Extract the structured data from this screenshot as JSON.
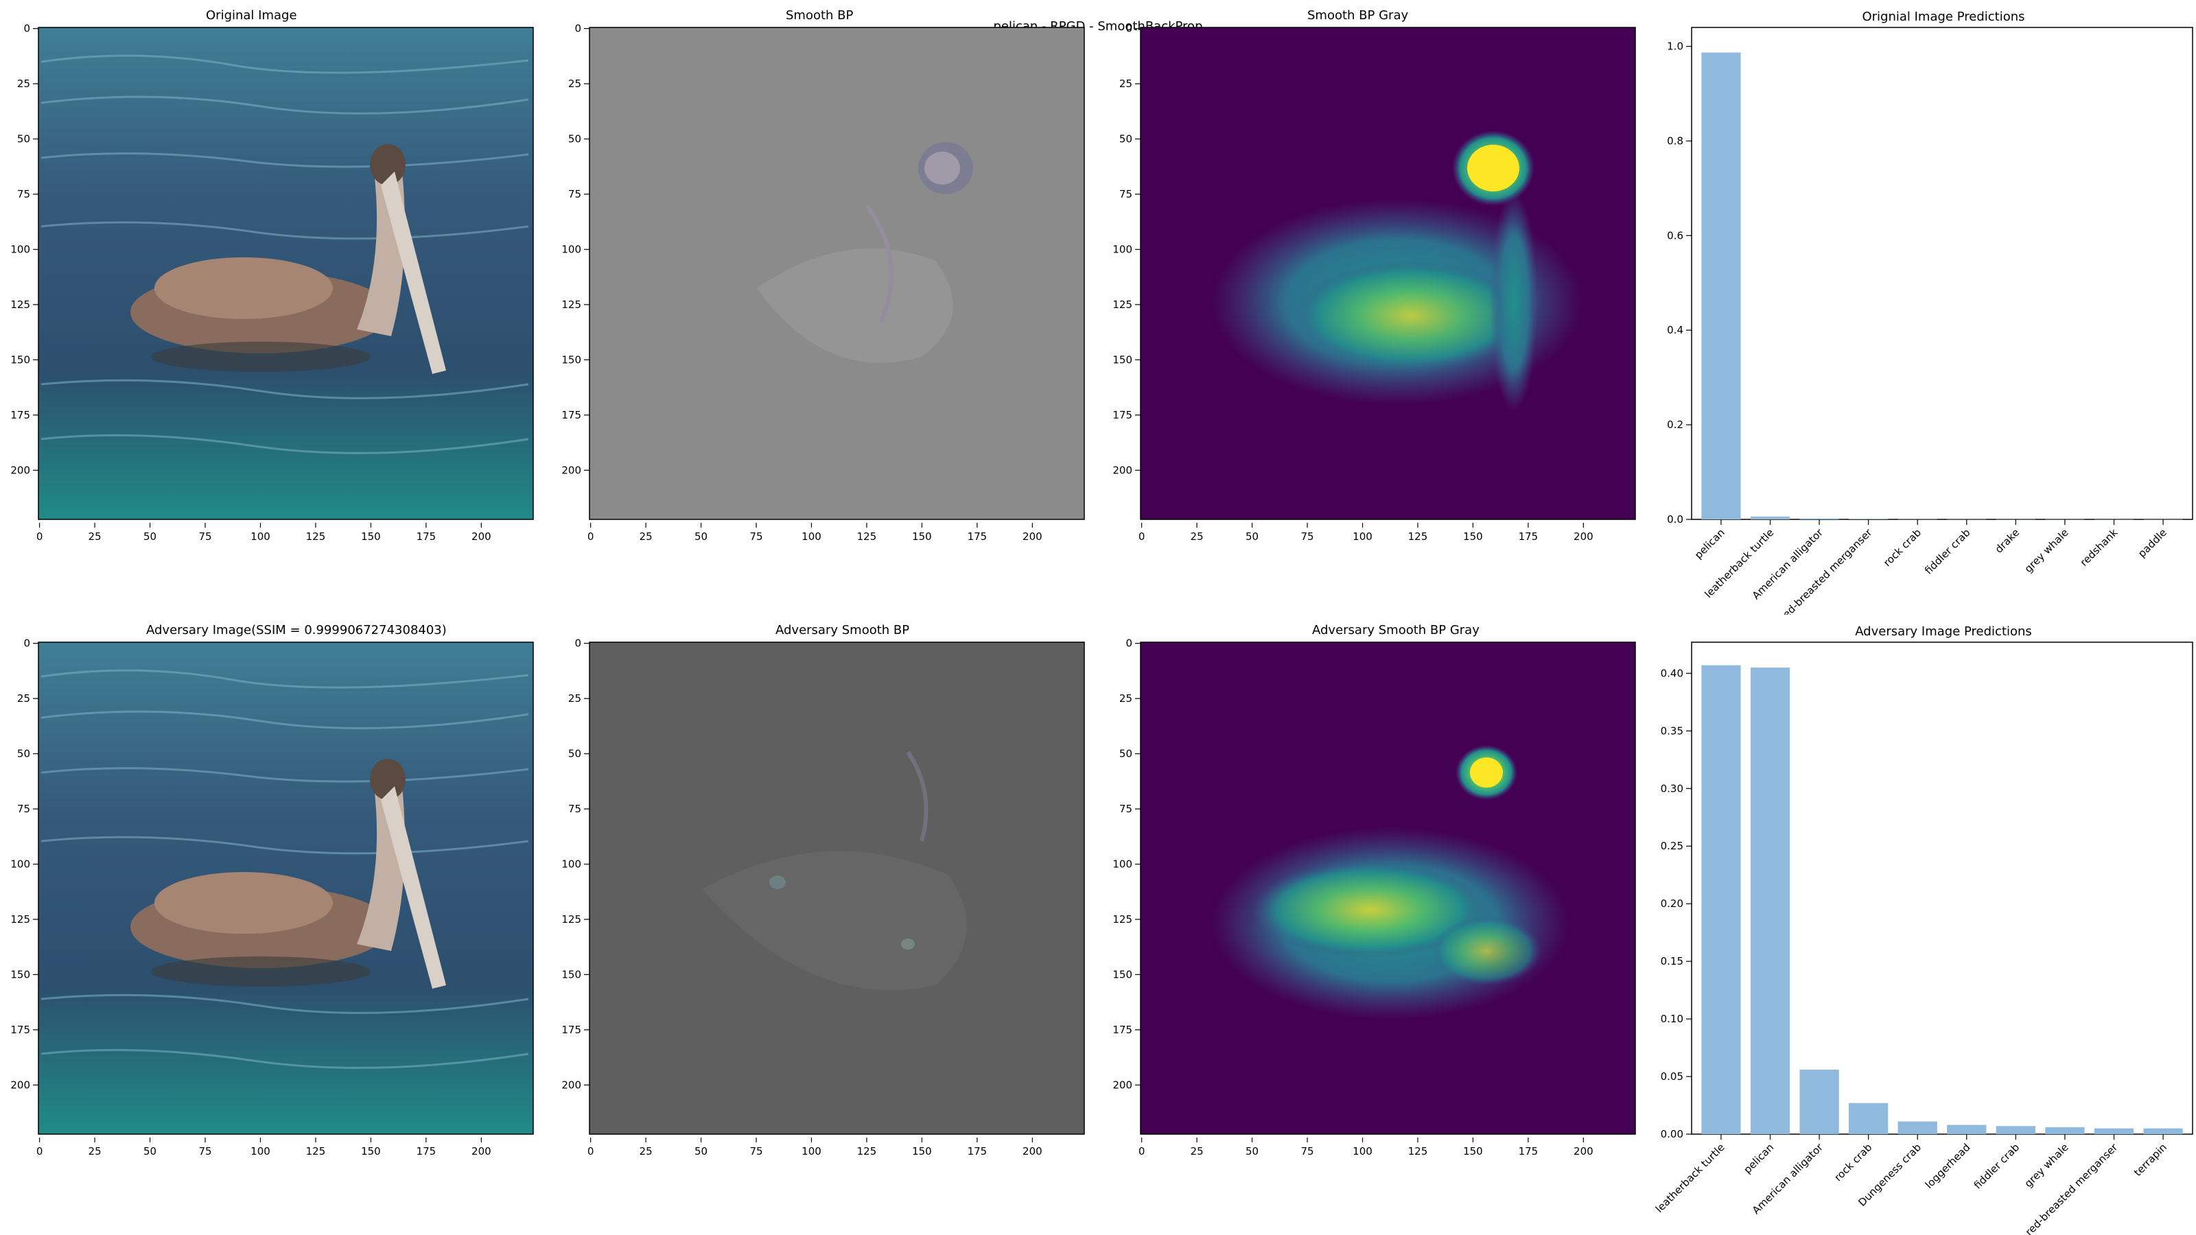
{
  "figure": {
    "suptitle": "pelican - RPGD - SmoothBackProp"
  },
  "panels": {
    "orig_image": {
      "title": "Original Image"
    },
    "smooth_bp": {
      "title": "Smooth BP"
    },
    "smooth_bp_gray": {
      "title": "Smooth BP Gray"
    },
    "adv_image": {
      "title": "Adversary Image(SSIM = 0.9999067274308403)"
    },
    "adv_smooth_bp": {
      "title": "Adversary Smooth BP"
    },
    "adv_smooth_bp_gray": {
      "title": "Adversary Smooth BP Gray"
    }
  },
  "image_axes": {
    "x_ticks": [
      "0",
      "25",
      "50",
      "75",
      "100",
      "125",
      "150",
      "175",
      "200"
    ],
    "y_ticks": [
      "0",
      "25",
      "50",
      "75",
      "100",
      "125",
      "150",
      "175",
      "200"
    ]
  },
  "colors": {
    "bar": "#8fb9dd",
    "viridis_low": "#440154",
    "viridis_mid": "#21918c",
    "viridis_high": "#fde725",
    "bp_gray_bg": "#8a8a8a",
    "adv_bp_bg": "#5e5e5e",
    "water": "#2a4f6e"
  },
  "chart_data": [
    {
      "type": "bar",
      "title": "Orignial Image Predictions",
      "categories": [
        "pelican",
        "leatherback turtle",
        "American alligator",
        "red-breasted merganser",
        "rock crab",
        "fiddler crab",
        "drake",
        "grey whale",
        "redshank",
        "paddle"
      ],
      "values": [
        0.987,
        0.006,
        0.002,
        0.001,
        0.0005,
        0.0004,
        0.0003,
        0.0003,
        0.0002,
        0.0002
      ],
      "ylim": [
        0,
        1.04
      ],
      "yticks": [
        "0.0",
        "0.2",
        "0.4",
        "0.6",
        "0.8",
        "1.0"
      ],
      "xlabel": "",
      "ylabel": ""
    },
    {
      "type": "bar",
      "title": "Adversary Image Predictions",
      "categories": [
        "leatherback turtle",
        "pelican",
        "American alligator",
        "rock crab",
        "Dungeness crab",
        "loggerhead",
        "fiddler crab",
        "grey whale",
        "red-breasted merganser",
        "terrapin"
      ],
      "values": [
        0.407,
        0.405,
        0.056,
        0.027,
        0.011,
        0.008,
        0.007,
        0.006,
        0.005,
        0.005
      ],
      "ylim": [
        0,
        0.427
      ],
      "yticks": [
        "0.00",
        "0.05",
        "0.10",
        "0.15",
        "0.20",
        "0.25",
        "0.30",
        "0.35",
        "0.40"
      ],
      "xlabel": "",
      "ylabel": ""
    }
  ]
}
